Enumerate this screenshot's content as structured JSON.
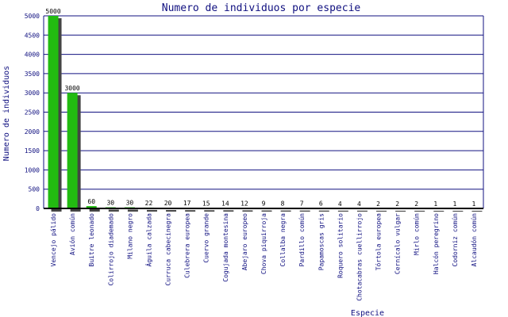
{
  "chart_data": {
    "type": "bar",
    "title": "Numero de individuos por especie",
    "xlabel": "Especie",
    "ylabel": "Numero de individuos",
    "ylim": [
      0,
      5000
    ],
    "yticks": [
      0,
      500,
      1000,
      1500,
      2000,
      2500,
      3000,
      3500,
      4000,
      4500,
      5000
    ],
    "grid": true,
    "categories": [
      "Vencejo pálido",
      "Avión común",
      "Buitre leonado",
      "Colirrojo diademado",
      "Milano negro",
      "Águila calzada",
      "Curruca cabecinegra",
      "Culebrera europea",
      "Cuervo grande",
      "Cogujada montesina",
      "Abejaro europeo",
      "Chova piquirroja",
      "Collalba negra",
      "Pardillo común",
      "Papamoscas gris",
      "Roquero solitario",
      "Chotacabras cuellirrojo",
      "Tórtola europea",
      "Cernícalo vulgar",
      "Mirlo común",
      "Halcón peregrino",
      "Codorniz común",
      "Alcaudón común"
    ],
    "values": [
      5000,
      3000,
      60,
      30,
      30,
      22,
      20,
      17,
      15,
      14,
      12,
      9,
      8,
      7,
      6,
      4,
      4,
      2,
      2,
      2,
      1,
      1,
      1
    ],
    "colors": {
      "bar": "#22bb11",
      "shadow": "#444444",
      "grid": "#101080",
      "axis": "#000000",
      "text": "#101080"
    }
  }
}
